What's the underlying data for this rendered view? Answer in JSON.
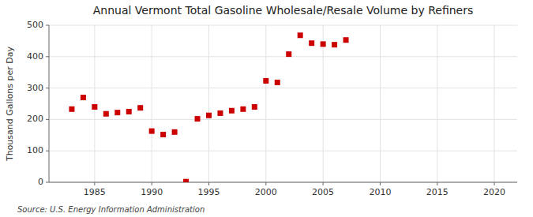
{
  "chart_data": {
    "type": "scatter",
    "title": "Annual Vermont Total Gasoline Wholesale/Resale Volume by Refiners",
    "ylabel": "Thousand Gallons per Day",
    "source": "Source: U.S. Energy Information Administration",
    "x": [
      1983,
      1984,
      1985,
      1986,
      1987,
      1988,
      1989,
      1990,
      1991,
      1992,
      1993,
      1994,
      1995,
      1996,
      1997,
      1998,
      1999,
      2000,
      2001,
      2002,
      2003,
      2004,
      2005,
      2006,
      2007
    ],
    "values": [
      233,
      270,
      240,
      218,
      222,
      225,
      237,
      163,
      152,
      160,
      2,
      202,
      213,
      220,
      228,
      233,
      240,
      323,
      318,
      408,
      468,
      443,
      440,
      438,
      453
    ],
    "xlim": [
      1981,
      2022
    ],
    "ylim": [
      0,
      500
    ],
    "xticks": [
      1985,
      1990,
      1995,
      2000,
      2005,
      2010,
      2015,
      2020
    ],
    "yticks": [
      0,
      100,
      200,
      300,
      400,
      500
    ],
    "color": "#cc0000",
    "marker": "square",
    "grid": true
  }
}
